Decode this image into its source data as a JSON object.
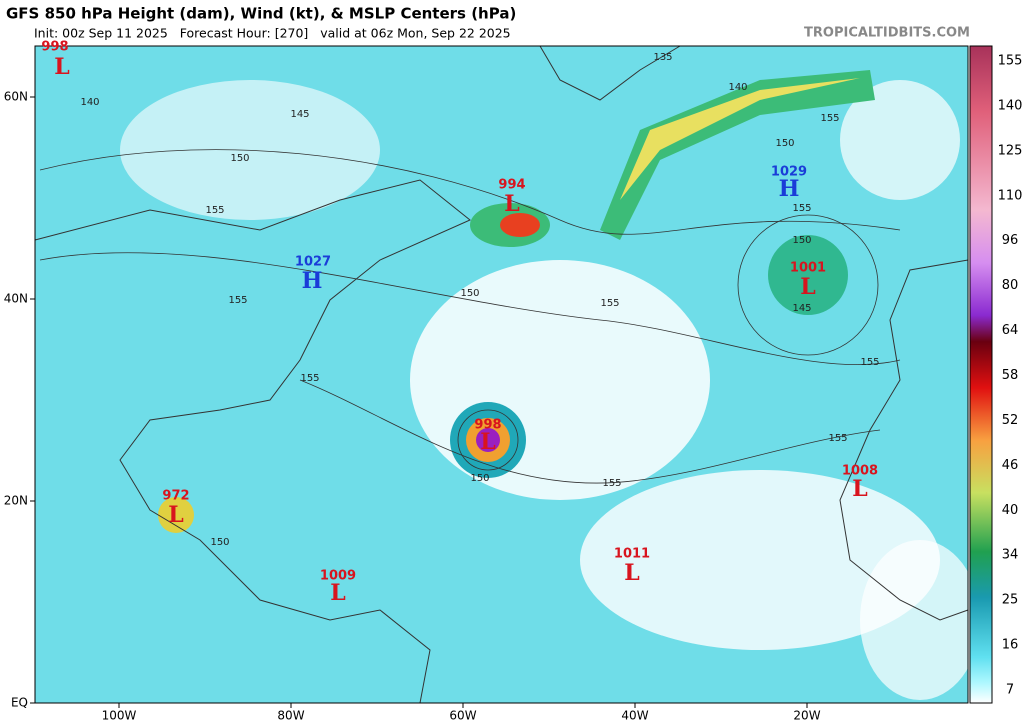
{
  "header": {
    "title": "GFS 850 hPa Height (dam), Wind (kt), & MSLP Centers (hPa)",
    "subtitle": "Init: 00z Sep 11 2025   Forecast Hour: [270]   valid at 06z Mon, Sep 22 2025",
    "source": "TROPICALTIDBITS.COM"
  },
  "map": {
    "lat_ticks": [
      {
        "value": 60,
        "label": "60N"
      },
      {
        "value": 40,
        "label": "40N"
      },
      {
        "value": 20,
        "label": "20N"
      },
      {
        "value": 0,
        "label": "EQ"
      }
    ],
    "lon_ticks": [
      {
        "value": -100,
        "label": "100W"
      },
      {
        "value": -80,
        "label": "80W"
      },
      {
        "value": -60,
        "label": "60W"
      },
      {
        "value": -40,
        "label": "40W"
      },
      {
        "value": -20,
        "label": "20W"
      }
    ],
    "centers": [
      {
        "letter": "L",
        "pressure": 998
      },
      {
        "letter": "L",
        "pressure": 994
      },
      {
        "letter": "H",
        "pressure": 1029
      },
      {
        "letter": "H",
        "pressure": 1027
      },
      {
        "letter": "L",
        "pressure": 1001
      },
      {
        "letter": "L",
        "pressure": 998
      },
      {
        "letter": "L",
        "pressure": 972
      },
      {
        "letter": "L",
        "pressure": 1008
      },
      {
        "letter": "L",
        "pressure": 1011
      },
      {
        "letter": "L",
        "pressure": 1009
      }
    ],
    "contour_labels": [
      135,
      140,
      140,
      145,
      150,
      155,
      155,
      150,
      155,
      150,
      145,
      155,
      155,
      155,
      150,
      150,
      155,
      155,
      155,
      150
    ]
  },
  "colorbar": {
    "ticks": [
      155,
      140,
      125,
      110,
      96,
      80,
      64,
      58,
      52,
      46,
      40,
      34,
      25,
      16,
      7
    ]
  }
}
